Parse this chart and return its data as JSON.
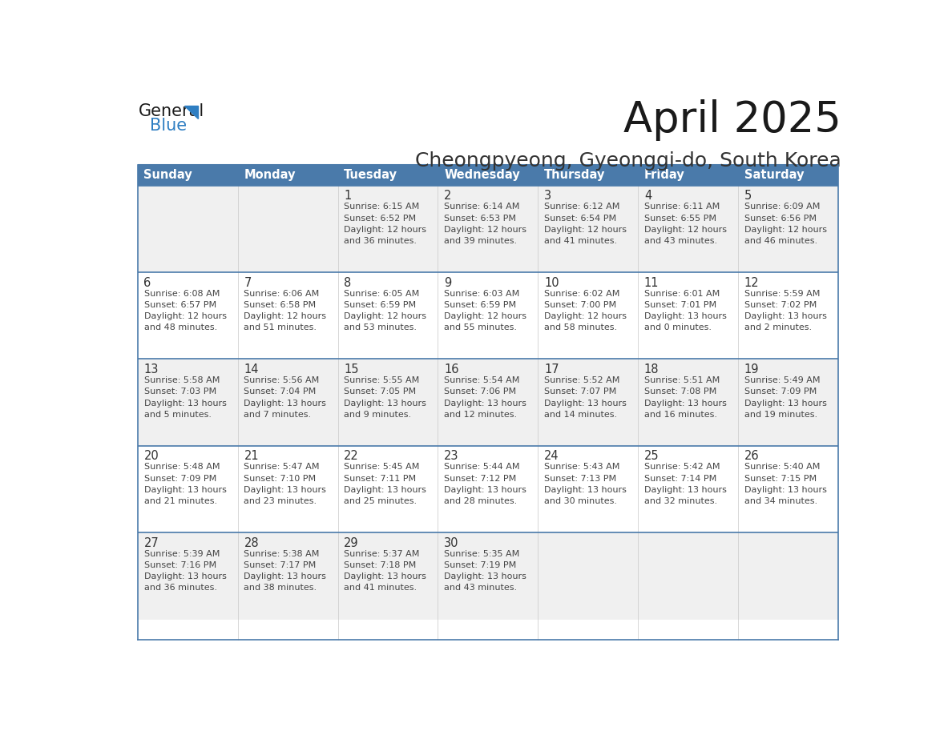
{
  "title": "April 2025",
  "subtitle": "Cheongpyeong, Gyeonggi-do, South Korea",
  "header_bg_color": "#4a7aaa",
  "header_text_color": "#ffffff",
  "cell_bg_row0": "#f0f0f0",
  "cell_bg_row1": "#ffffff",
  "cell_bg_row2": "#f0f0f0",
  "cell_bg_row3": "#ffffff",
  "cell_bg_row4": "#f0f0f0",
  "day_number_color": "#333333",
  "cell_text_color": "#444444",
  "title_color": "#1a1a1a",
  "subtitle_color": "#333333",
  "logo_general_color": "#1a1a1a",
  "logo_blue_color": "#2e7ec2",
  "separator_color": "#4a7aaa",
  "days_of_week": [
    "Sunday",
    "Monday",
    "Tuesday",
    "Wednesday",
    "Thursday",
    "Friday",
    "Saturday"
  ],
  "weeks": [
    [
      {
        "day": null,
        "sunrise": null,
        "sunset": null,
        "daylight": null
      },
      {
        "day": null,
        "sunrise": null,
        "sunset": null,
        "daylight": null
      },
      {
        "day": 1,
        "sunrise": "6:15 AM",
        "sunset": "6:52 PM",
        "daylight": "12 hours\nand 36 minutes."
      },
      {
        "day": 2,
        "sunrise": "6:14 AM",
        "sunset": "6:53 PM",
        "daylight": "12 hours\nand 39 minutes."
      },
      {
        "day": 3,
        "sunrise": "6:12 AM",
        "sunset": "6:54 PM",
        "daylight": "12 hours\nand 41 minutes."
      },
      {
        "day": 4,
        "sunrise": "6:11 AM",
        "sunset": "6:55 PM",
        "daylight": "12 hours\nand 43 minutes."
      },
      {
        "day": 5,
        "sunrise": "6:09 AM",
        "sunset": "6:56 PM",
        "daylight": "12 hours\nand 46 minutes."
      }
    ],
    [
      {
        "day": 6,
        "sunrise": "6:08 AM",
        "sunset": "6:57 PM",
        "daylight": "12 hours\nand 48 minutes."
      },
      {
        "day": 7,
        "sunrise": "6:06 AM",
        "sunset": "6:58 PM",
        "daylight": "12 hours\nand 51 minutes."
      },
      {
        "day": 8,
        "sunrise": "6:05 AM",
        "sunset": "6:59 PM",
        "daylight": "12 hours\nand 53 minutes."
      },
      {
        "day": 9,
        "sunrise": "6:03 AM",
        "sunset": "6:59 PM",
        "daylight": "12 hours\nand 55 minutes."
      },
      {
        "day": 10,
        "sunrise": "6:02 AM",
        "sunset": "7:00 PM",
        "daylight": "12 hours\nand 58 minutes."
      },
      {
        "day": 11,
        "sunrise": "6:01 AM",
        "sunset": "7:01 PM",
        "daylight": "13 hours\nand 0 minutes."
      },
      {
        "day": 12,
        "sunrise": "5:59 AM",
        "sunset": "7:02 PM",
        "daylight": "13 hours\nand 2 minutes."
      }
    ],
    [
      {
        "day": 13,
        "sunrise": "5:58 AM",
        "sunset": "7:03 PM",
        "daylight": "13 hours\nand 5 minutes."
      },
      {
        "day": 14,
        "sunrise": "5:56 AM",
        "sunset": "7:04 PM",
        "daylight": "13 hours\nand 7 minutes."
      },
      {
        "day": 15,
        "sunrise": "5:55 AM",
        "sunset": "7:05 PM",
        "daylight": "13 hours\nand 9 minutes."
      },
      {
        "day": 16,
        "sunrise": "5:54 AM",
        "sunset": "7:06 PM",
        "daylight": "13 hours\nand 12 minutes."
      },
      {
        "day": 17,
        "sunrise": "5:52 AM",
        "sunset": "7:07 PM",
        "daylight": "13 hours\nand 14 minutes."
      },
      {
        "day": 18,
        "sunrise": "5:51 AM",
        "sunset": "7:08 PM",
        "daylight": "13 hours\nand 16 minutes."
      },
      {
        "day": 19,
        "sunrise": "5:49 AM",
        "sunset": "7:09 PM",
        "daylight": "13 hours\nand 19 minutes."
      }
    ],
    [
      {
        "day": 20,
        "sunrise": "5:48 AM",
        "sunset": "7:09 PM",
        "daylight": "13 hours\nand 21 minutes."
      },
      {
        "day": 21,
        "sunrise": "5:47 AM",
        "sunset": "7:10 PM",
        "daylight": "13 hours\nand 23 minutes."
      },
      {
        "day": 22,
        "sunrise": "5:45 AM",
        "sunset": "7:11 PM",
        "daylight": "13 hours\nand 25 minutes."
      },
      {
        "day": 23,
        "sunrise": "5:44 AM",
        "sunset": "7:12 PM",
        "daylight": "13 hours\nand 28 minutes."
      },
      {
        "day": 24,
        "sunrise": "5:43 AM",
        "sunset": "7:13 PM",
        "daylight": "13 hours\nand 30 minutes."
      },
      {
        "day": 25,
        "sunrise": "5:42 AM",
        "sunset": "7:14 PM",
        "daylight": "13 hours\nand 32 minutes."
      },
      {
        "day": 26,
        "sunrise": "5:40 AM",
        "sunset": "7:15 PM",
        "daylight": "13 hours\nand 34 minutes."
      }
    ],
    [
      {
        "day": 27,
        "sunrise": "5:39 AM",
        "sunset": "7:16 PM",
        "daylight": "13 hours\nand 36 minutes."
      },
      {
        "day": 28,
        "sunrise": "5:38 AM",
        "sunset": "7:17 PM",
        "daylight": "13 hours\nand 38 minutes."
      },
      {
        "day": 29,
        "sunrise": "5:37 AM",
        "sunset": "7:18 PM",
        "daylight": "13 hours\nand 41 minutes."
      },
      {
        "day": 30,
        "sunrise": "5:35 AM",
        "sunset": "7:19 PM",
        "daylight": "13 hours\nand 43 minutes."
      },
      {
        "day": null,
        "sunrise": null,
        "sunset": null,
        "daylight": null
      },
      {
        "day": null,
        "sunrise": null,
        "sunset": null,
        "daylight": null
      },
      {
        "day": null,
        "sunrise": null,
        "sunset": null,
        "daylight": null
      }
    ]
  ]
}
